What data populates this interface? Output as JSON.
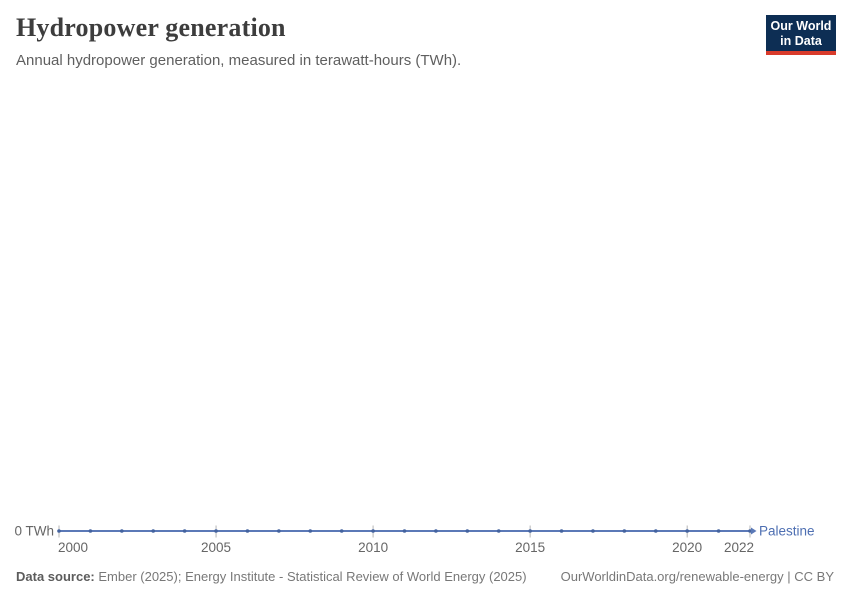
{
  "header": {
    "title": "Hydropower generation",
    "subtitle": "Annual hydropower generation, measured in terawatt-hours (TWh).",
    "logo": {
      "line1": "Our World",
      "line2": "in Data"
    }
  },
  "chart_data": {
    "type": "line",
    "title": "Hydropower generation",
    "unit": "TWh",
    "x": [
      2000,
      2001,
      2002,
      2003,
      2004,
      2005,
      2006,
      2007,
      2008,
      2009,
      2010,
      2011,
      2012,
      2013,
      2014,
      2015,
      2016,
      2017,
      2018,
      2019,
      2020,
      2021,
      2022
    ],
    "series": [
      {
        "name": "Palestine",
        "values": [
          0,
          0,
          0,
          0,
          0,
          0,
          0,
          0,
          0,
          0,
          0,
          0,
          0,
          0,
          0,
          0,
          0,
          0,
          0,
          0,
          0,
          0,
          0
        ]
      }
    ],
    "x_ticks": [
      2000,
      2005,
      2010,
      2015,
      2020,
      2022
    ],
    "y_ticks": [
      {
        "value": 0,
        "label": "0 TWh"
      }
    ],
    "y_axis_label": "0 TWh",
    "xlim": [
      2000,
      2022
    ],
    "ylim": [
      0,
      0
    ],
    "grid": false,
    "legend_position": "end-of-line",
    "entity_label": "Palestine"
  },
  "colors": {
    "line": "#5b79b7",
    "marker": "#44639f",
    "entity_label": "#4e6fb2",
    "tick": "#b5b5b5",
    "axis_text": "#666666",
    "logo_bg": "#0d2e54",
    "logo_red": "#d93b2b"
  },
  "footer": {
    "source_label": "Data source:",
    "source_text": " Ember (2025); Energy Institute - Statistical Review of World Energy (2025)",
    "link_text": "OurWorldinData.org/renewable-energy",
    "separator": " | ",
    "license": "CC BY"
  }
}
